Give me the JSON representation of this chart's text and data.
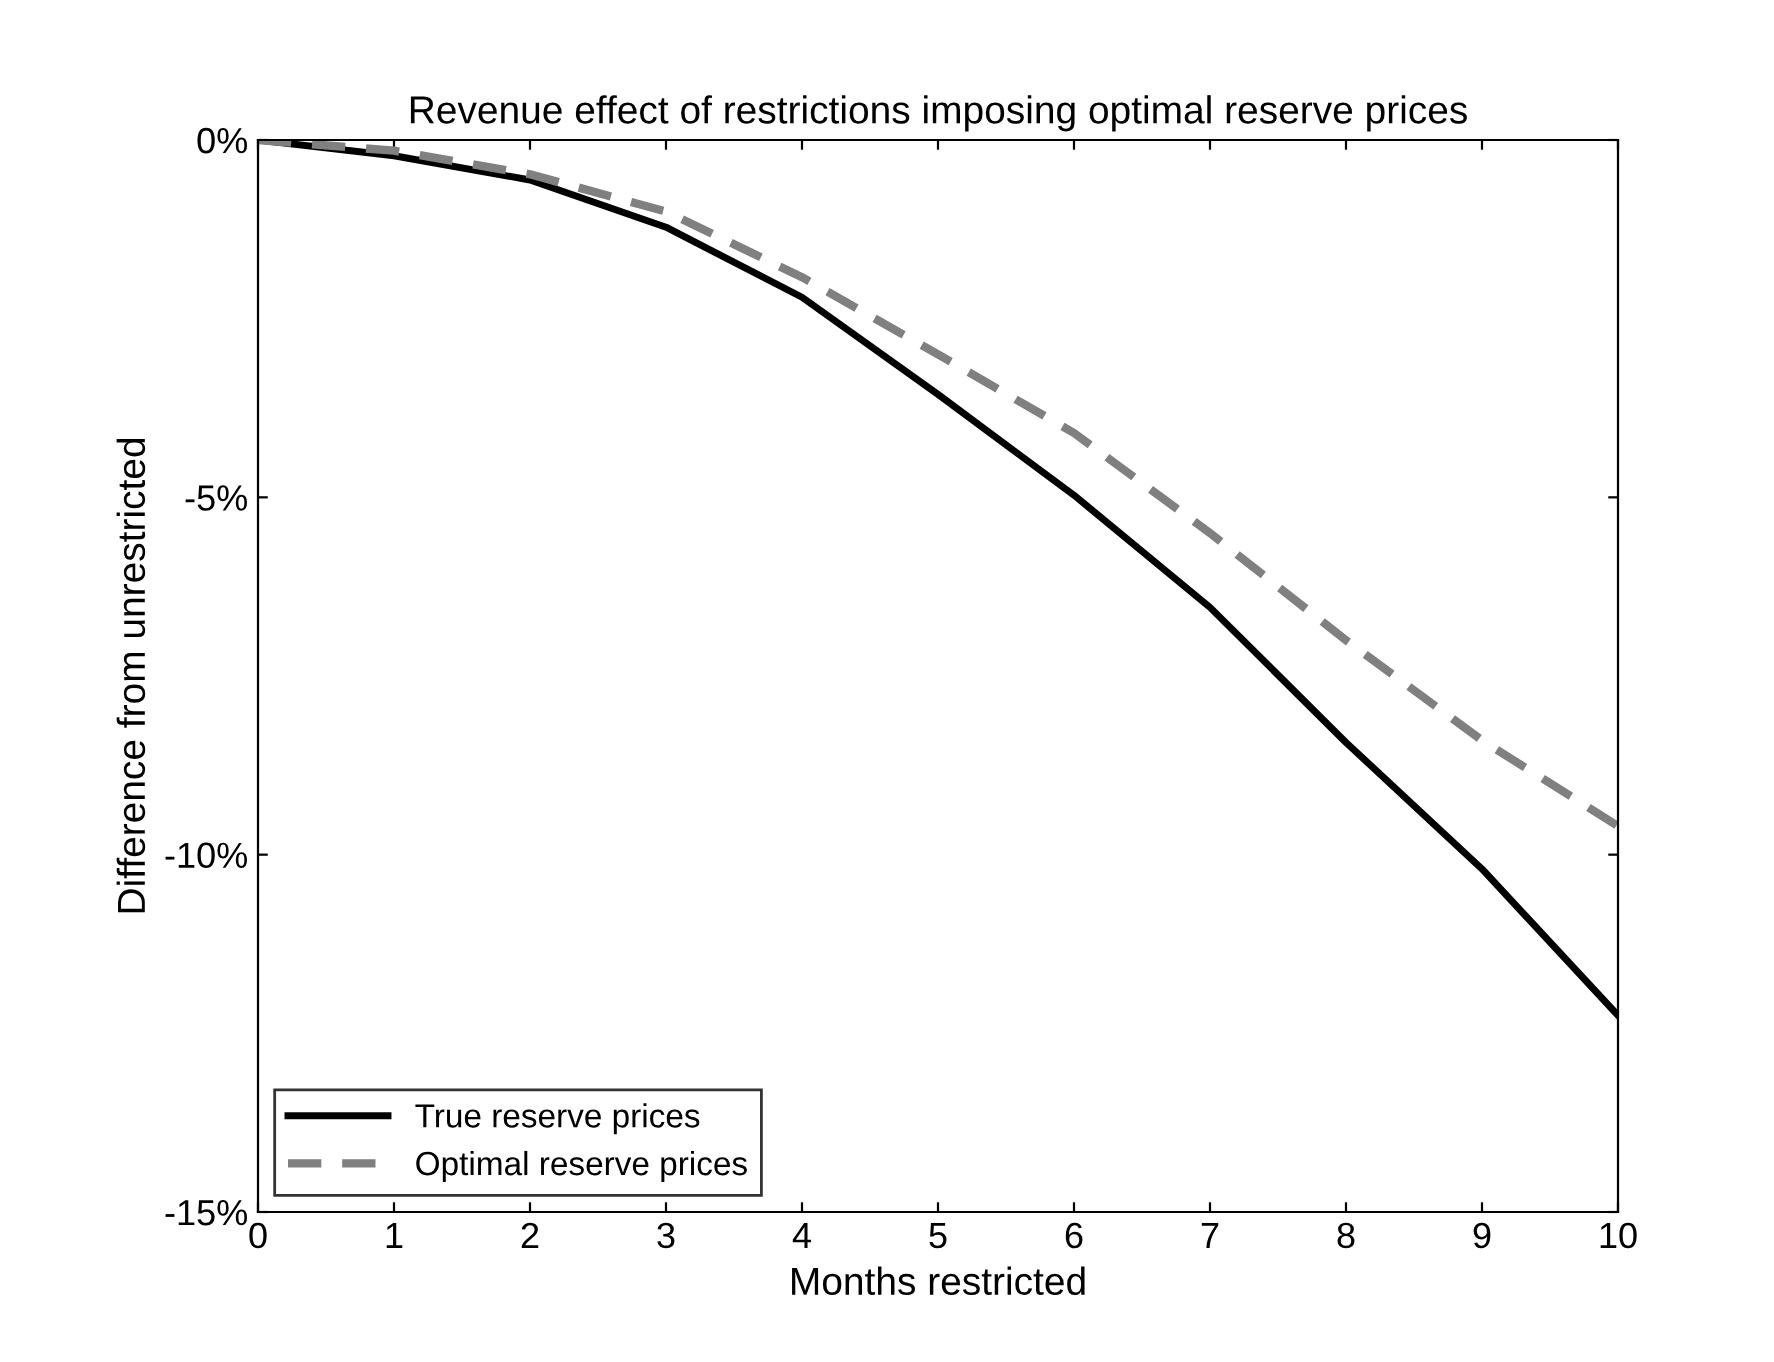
{
  "chart_data": {
    "type": "line",
    "title": "Revenue effect of restrictions imposing optimal reserve prices",
    "xlabel": "Months restricted",
    "ylabel": "Difference from unrestricted",
    "x": [
      0,
      1,
      2,
      3,
      4,
      5,
      6,
      7,
      8,
      9,
      10
    ],
    "series": [
      {
        "name": "True reserve prices",
        "color": "#000000",
        "line_style": "solid",
        "values": [
          0,
          -0.22,
          -0.56,
          -1.22,
          -2.2,
          -3.56,
          -4.97,
          -6.54,
          -8.43,
          -10.2,
          -12.25
        ]
      },
      {
        "name": "Optimal reserve prices",
        "color": "#808080",
        "line_style": "dashed",
        "values": [
          0,
          -0.15,
          -0.48,
          -1.0,
          -1.92,
          -3.0,
          -4.1,
          -5.5,
          -7.0,
          -8.4,
          -9.6
        ]
      }
    ],
    "xlim": [
      0,
      10
    ],
    "xticks": [
      0,
      1,
      2,
      3,
      4,
      5,
      6,
      7,
      8,
      9,
      10
    ],
    "ylim": [
      -15,
      0
    ],
    "yticks": [
      {
        "value": -15,
        "label": "-15%"
      },
      {
        "value": -10,
        "label": "-10%"
      },
      {
        "value": -5,
        "label": "-5%"
      },
      {
        "value": 0,
        "label": "0%"
      }
    ],
    "grid": false,
    "legend": "bottom left"
  }
}
